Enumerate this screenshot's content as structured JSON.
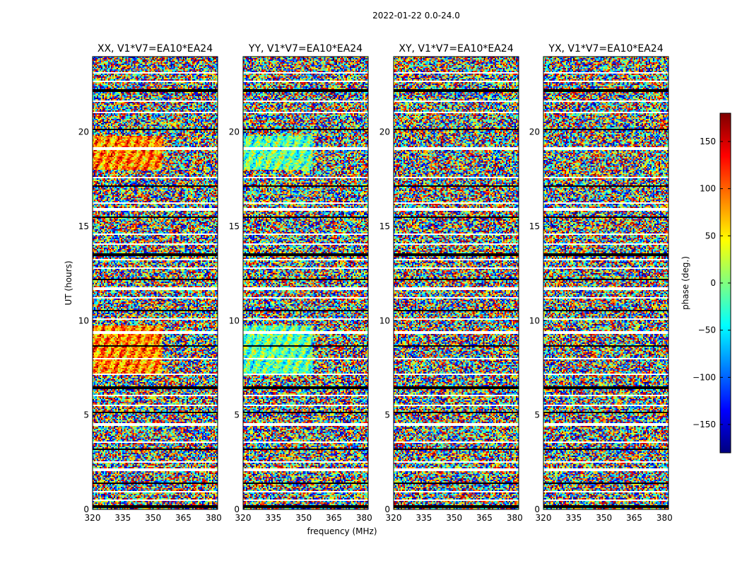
{
  "figure": {
    "title": "2022-01-22 0.0-24.0"
  },
  "chart_data": {
    "type": "heatmap",
    "colormap": "jet",
    "xlabel": "frequency (MHz)",
    "ylabel": "UT (hours)",
    "xlim": [
      320,
      382
    ],
    "ylim": [
      0,
      24
    ],
    "xticks": [
      "320",
      "335",
      "350",
      "365",
      "380"
    ],
    "yticks": [
      "0",
      "5",
      "10",
      "15",
      "20"
    ],
    "colorbar": {
      "label": "phase (deg.)",
      "range": [
        -180,
        180
      ],
      "ticks": [
        "150",
        "100",
        "50",
        "0",
        "−50",
        "−100",
        "−150"
      ]
    },
    "panels": [
      {
        "title": "XX, V1*V7=EA10*EA24"
      },
      {
        "title": "YY, V1*V7=EA10*EA24"
      },
      {
        "title": "XY, V1*V7=EA10*EA24"
      },
      {
        "title": "YX, V1*V7=EA10*EA24"
      }
    ],
    "flagged_hours": [
      0.25,
      0.55,
      1.0,
      1.45,
      2.15,
      2.55,
      3.2,
      3.6,
      4.6,
      5.15,
      5.55,
      6.1,
      6.55,
      7.2,
      8.05,
      8.7,
      9.45,
      10.1,
      10.6,
      11.25,
      11.8,
      12.2,
      12.8,
      13.3,
      13.6,
      14.1,
      14.65,
      15.5,
      16.0,
      16.3,
      17.2,
      17.65,
      19.2,
      20.2,
      21.1,
      21.7,
      22.25,
      22.75,
      23.2
    ]
  }
}
